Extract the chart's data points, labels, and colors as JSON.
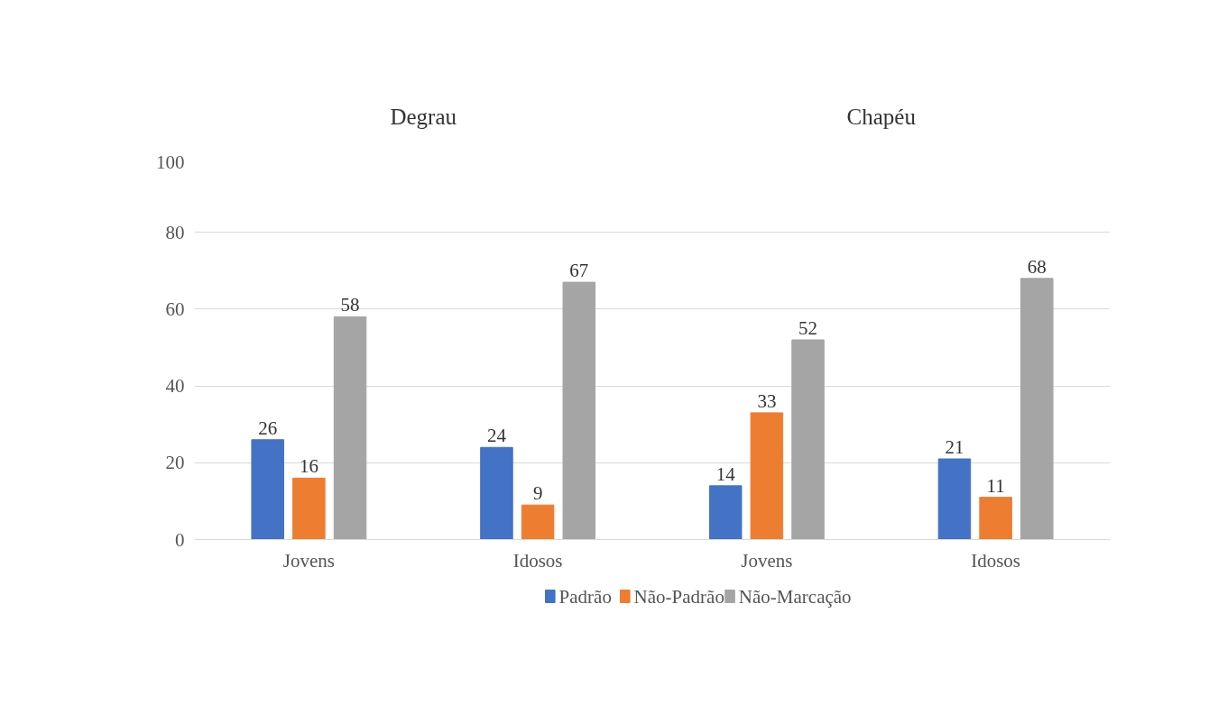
{
  "chart_data": {
    "type": "bar",
    "categories": [
      "Jovens",
      "Idosos",
      "Jovens",
      "Idosos"
    ],
    "annotations": [
      "Degrau",
      "Chapéu"
    ],
    "series": [
      {
        "name": "Padrão",
        "color": "#4472c4",
        "values": [
          26,
          24,
          14,
          21
        ]
      },
      {
        "name": "Não-Padrão",
        "color": "#ed7d31",
        "values": [
          16,
          9,
          33,
          11
        ]
      },
      {
        "name": "Não-Marcação",
        "color": "#a5a5a5",
        "values": [
          58,
          67,
          52,
          68
        ]
      }
    ],
    "ylim": [
      0,
      100
    ],
    "yticks": [
      0,
      20,
      40,
      60,
      80,
      100
    ],
    "grid": "y",
    "legend": "bottom",
    "data_labels": true
  }
}
